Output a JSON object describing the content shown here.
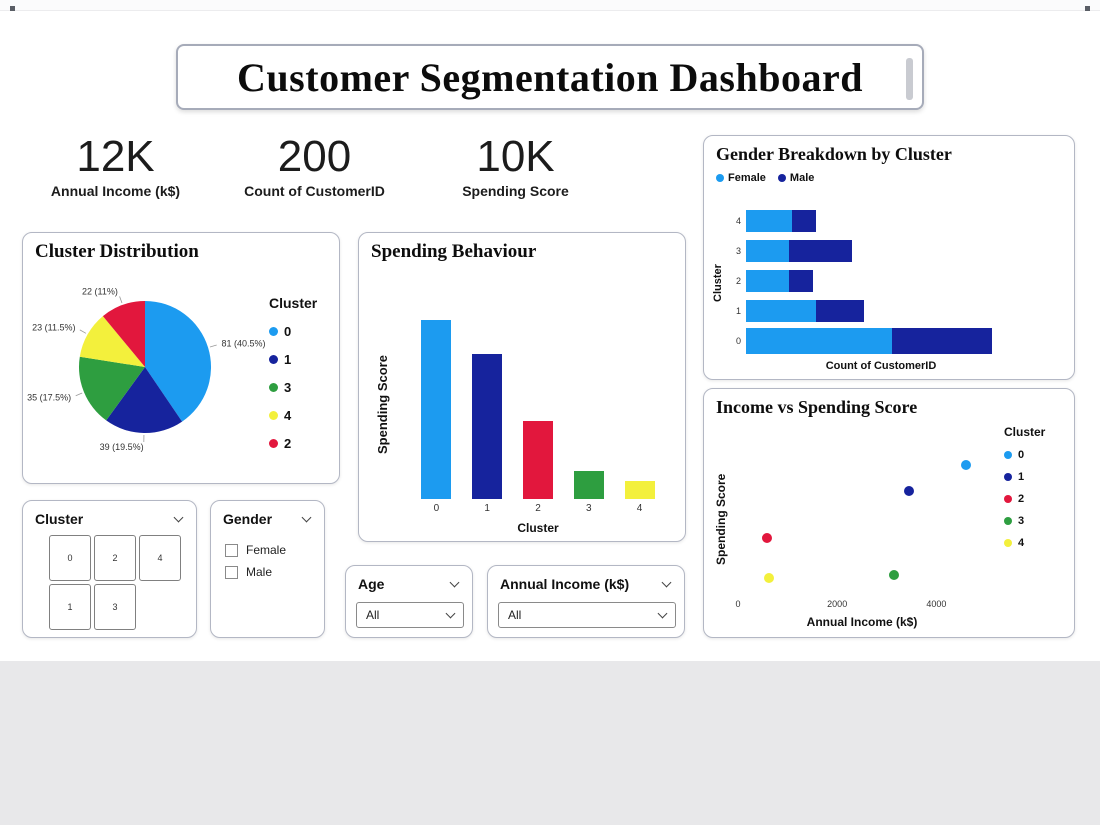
{
  "title": "Customer Segmentation Dashboard",
  "kpis": [
    {
      "value": "12K",
      "label": "Annual Income (k$)"
    },
    {
      "value": "200",
      "label": "Count of CustomerID"
    },
    {
      "value": "10K",
      "label": "Spending Score"
    }
  ],
  "chart_data": [
    {
      "id": "cluster_distribution",
      "type": "pie",
      "title": "Cluster Distribution",
      "legend_title": "Cluster",
      "legend": [
        "0",
        "1",
        "3",
        "4",
        "2"
      ],
      "slices": [
        {
          "cluster": "0",
          "value": 81,
          "pct": "40.5%",
          "label": "81 (40.5%)",
          "color": "#1C9BF0"
        },
        {
          "cluster": "1",
          "value": 39,
          "pct": "19.5%",
          "label": "39 (19.5%)",
          "color": "#16239D"
        },
        {
          "cluster": "3",
          "value": 35,
          "pct": "17.5%",
          "label": "35 (17.5%)",
          "color": "#2E9E40"
        },
        {
          "cluster": "4",
          "value": 23,
          "pct": "11.5%",
          "label": "23 (11.5%)",
          "color": "#F3F03C"
        },
        {
          "cluster": "2",
          "value": 22,
          "pct": "11%",
          "label": "22 (11%)",
          "color": "#E2173D"
        }
      ]
    },
    {
      "id": "spending_behaviour",
      "type": "bar",
      "title": "Spending Behaviour",
      "xlabel": "Cluster",
      "ylabel": "Spending Score",
      "categories": [
        "0",
        "1",
        "2",
        "3",
        "4"
      ],
      "values": [
        4000,
        3250,
        1750,
        620,
        400
      ],
      "colors": [
        "#1C9BF0",
        "#16239D",
        "#E2173D",
        "#2E9E40",
        "#F3F03C"
      ],
      "ylim": [
        0,
        4200
      ],
      "grid": false
    },
    {
      "id": "gender_breakdown",
      "type": "stacked_bar_horizontal",
      "title": "Gender Breakdown by Cluster",
      "xlabel": "Count of CustomerID",
      "ylabel": "Cluster",
      "categories": [
        "4",
        "3",
        "2",
        "1",
        "0"
      ],
      "series": [
        {
          "name": "Female",
          "color": "#1C9BF0",
          "values": [
            15,
            14,
            14,
            23,
            48
          ]
        },
        {
          "name": "Male",
          "color": "#16239D",
          "values": [
            8,
            21,
            8,
            16,
            33
          ]
        }
      ],
      "xlim": [
        0,
        85
      ],
      "legend_position": "top-left"
    },
    {
      "id": "income_vs_spending",
      "type": "scatter",
      "title": "Income vs Spending Score",
      "xlabel": "Annual Income (k$)",
      "ylabel": "Spending Score",
      "legend_title": "Cluster",
      "x_ticks": [
        "0",
        "2000",
        "4000"
      ],
      "xlim": [
        0,
        5000
      ],
      "ylim": [
        0,
        100
      ],
      "points": [
        {
          "cluster": "0",
          "x": 4600,
          "y": 84,
          "color": "#1C9BF0"
        },
        {
          "cluster": "1",
          "x": 3450,
          "y": 67,
          "color": "#16239D"
        },
        {
          "cluster": "2",
          "x": 590,
          "y": 36,
          "color": "#E2173D"
        },
        {
          "cluster": "3",
          "x": 3150,
          "y": 12,
          "color": "#2E9E40"
        },
        {
          "cluster": "4",
          "x": 620,
          "y": 10,
          "color": "#F3F03C"
        }
      ]
    }
  ],
  "slicers": {
    "cluster": {
      "title": "Cluster",
      "buttons": [
        "0",
        "2",
        "4",
        "1",
        "3"
      ]
    },
    "gender": {
      "title": "Gender",
      "options": [
        "Female",
        "Male"
      ]
    },
    "age": {
      "title": "Age",
      "value": "All"
    },
    "income": {
      "title": "Annual Income (k$)",
      "value": "All"
    }
  }
}
